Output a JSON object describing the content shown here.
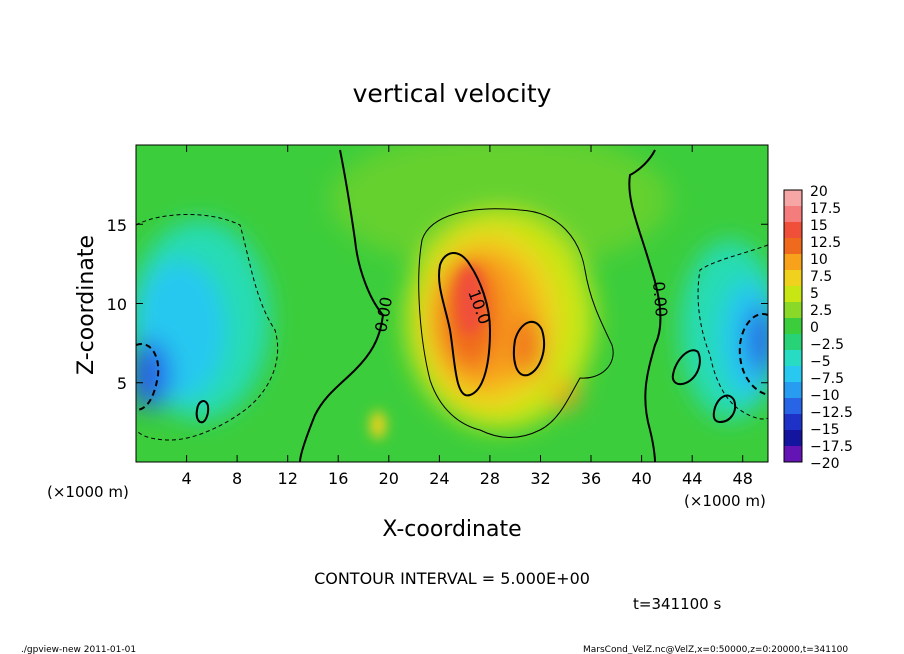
{
  "chart_data": {
    "type": "heatmap",
    "title": "vertical velocity",
    "xlabel": "X-coordinate",
    "ylabel": "Z-coordinate",
    "x_unit": "(×1000 m)",
    "y_unit": "(×1000 m)",
    "xlim": [
      0,
      50
    ],
    "ylim": [
      0,
      20
    ],
    "x_ticks": [
      "4",
      "8",
      "12",
      "16",
      "20",
      "24",
      "28",
      "32",
      "36",
      "40",
      "44",
      "48"
    ],
    "y_ticks": [
      "5",
      "10",
      "15"
    ],
    "colorbar": {
      "labels": [
        "20",
        "17.5",
        "15",
        "12.5",
        "10",
        "7.5",
        "5",
        "2.5",
        "0",
        "−2.5",
        "−5",
        "−7.5",
        "−10",
        "−12.5",
        "−15",
        "−17.5",
        "−20"
      ],
      "colors": [
        "#f7a6a6",
        "#f47c7c",
        "#f0503a",
        "#f06a1e",
        "#f7a21a",
        "#f0d21e",
        "#c8e614",
        "#8ad828",
        "#3ccd3c",
        "#28d276",
        "#28dcc4",
        "#28c8f0",
        "#289cf0",
        "#2864e6",
        "#1e32c8",
        "#14149e",
        "#6414b4"
      ]
    },
    "contour_labels": [
      "0.00",
      "10.0",
      "0.00"
    ],
    "contour_interval": "CONTOUR INTERVAL = 5.000E+00",
    "time": "t=341100 s"
  },
  "footer": {
    "left": "./gpview-new  2011-01-01",
    "right": "MarsCond_VelZ.nc@VelZ,x=0:50000,z=0:20000,t=341100"
  }
}
